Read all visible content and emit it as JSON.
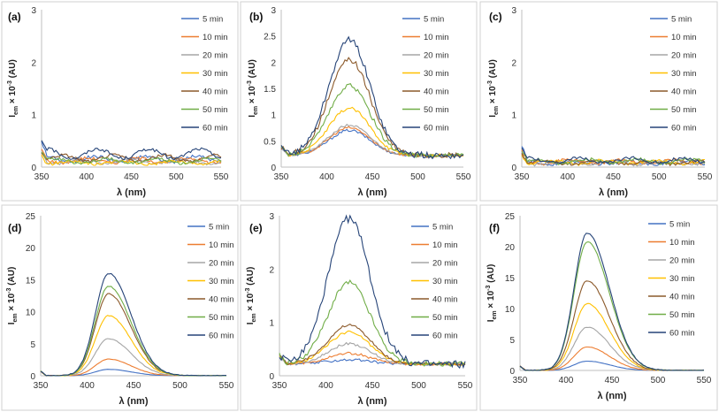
{
  "legend_labels": [
    "5 min",
    "10 min",
    "20 min",
    "30 min",
    "40 min",
    "50 min",
    "60 min"
  ],
  "series_colors": [
    "#4472C4",
    "#ED7D31",
    "#A5A5A5",
    "#FFC000",
    "#8C5A2B",
    "#70AD47",
    "#264478"
  ],
  "chart_data": [
    {
      "type": "line",
      "panel_label": "(a)",
      "xlabel": "λ (nm)",
      "ylabel": "Iem × 10-3 (AU)",
      "ylabel_parts": [
        "I",
        "em",
        "× 10",
        "-3",
        "(AU)"
      ],
      "xlim": [
        350,
        550
      ],
      "ylim": [
        0,
        3
      ],
      "xticks": [
        "350",
        "400",
        "450",
        "500",
        "550"
      ],
      "yticks": [
        "0",
        "1",
        "2",
        "3"
      ],
      "profile": "flat",
      "series": [
        {
          "name": "5 min",
          "peak": 0.18
        },
        {
          "name": "10 min",
          "peak": 0.15
        },
        {
          "name": "20 min",
          "peak": 0.12
        },
        {
          "name": "30 min",
          "peak": 0.1
        },
        {
          "name": "40 min",
          "peak": 0.2
        },
        {
          "name": "50 min",
          "peak": 0.14
        },
        {
          "name": "60 min",
          "peak": 0.3
        }
      ]
    },
    {
      "type": "line",
      "panel_label": "(b)",
      "xlabel": "λ (nm)",
      "ylabel": "Iem × 10-3 (AU)",
      "ylabel_parts": [
        "I",
        "em",
        "× 10",
        "-3",
        "(AU)"
      ],
      "xlim": [
        350,
        550
      ],
      "ylim": [
        0,
        3
      ],
      "xticks": [
        "350",
        "400",
        "450",
        "500",
        "550"
      ],
      "yticks": [
        "0",
        "0.5",
        "1",
        "1.5",
        "2",
        "2.5",
        "3"
      ],
      "profile": "peak",
      "series": [
        {
          "name": "5 min",
          "peak": 0.7
        },
        {
          "name": "10 min",
          "peak": 0.75
        },
        {
          "name": "20 min",
          "peak": 0.8
        },
        {
          "name": "30 min",
          "peak": 1.12
        },
        {
          "name": "40 min",
          "peak": 2.05
        },
        {
          "name": "50 min",
          "peak": 1.55
        },
        {
          "name": "60 min",
          "peak": 2.42
        }
      ]
    },
    {
      "type": "line",
      "panel_label": "(c)",
      "xlabel": "λ (nm)",
      "ylabel": "Iem × 10-3 (AU)",
      "ylabel_parts": [
        "I",
        "em",
        "× 10",
        "-3",
        "(AU)"
      ],
      "xlim": [
        350,
        550
      ],
      "ylim": [
        0,
        3
      ],
      "xticks": [
        "350",
        "400",
        "450",
        "500",
        "550"
      ],
      "yticks": [
        "0",
        "1",
        "2",
        "3"
      ],
      "profile": "flat",
      "series": [
        {
          "name": "5 min",
          "peak": 0.1
        },
        {
          "name": "10 min",
          "peak": 0.12
        },
        {
          "name": "20 min",
          "peak": 0.09
        },
        {
          "name": "30 min",
          "peak": 0.11
        },
        {
          "name": "40 min",
          "peak": 0.1
        },
        {
          "name": "50 min",
          "peak": 0.13
        },
        {
          "name": "60 min",
          "peak": 0.15
        }
      ]
    },
    {
      "type": "line",
      "panel_label": "(d)",
      "xlabel": "λ (nm)",
      "ylabel": "Iem × 10-3 (AU)",
      "ylabel_parts": [
        "I",
        "em",
        "× 10",
        "-3",
        "(AU)"
      ],
      "xlim": [
        350,
        550
      ],
      "ylim": [
        0,
        25
      ],
      "xticks": [
        "350",
        "400",
        "450",
        "500",
        "550"
      ],
      "yticks": [
        "0",
        "5",
        "10",
        "15",
        "20",
        "25"
      ],
      "profile": "smooth",
      "series": [
        {
          "name": "5 min",
          "peak": 1.0
        },
        {
          "name": "10 min",
          "peak": 2.6
        },
        {
          "name": "20 min",
          "peak": 5.8
        },
        {
          "name": "30 min",
          "peak": 9.4
        },
        {
          "name": "40 min",
          "peak": 12.8
        },
        {
          "name": "50 min",
          "peak": 14.0
        },
        {
          "name": "60 min",
          "peak": 16.0
        }
      ]
    },
    {
      "type": "line",
      "panel_label": "(e)",
      "xlabel": "λ (nm)",
      "ylabel": "Iem × 10-3 (AU)",
      "ylabel_parts": [
        "I",
        "em",
        "× 10",
        "-3",
        "(AU)"
      ],
      "xlim": [
        350,
        550
      ],
      "ylim": [
        0,
        3
      ],
      "xticks": [
        "350",
        "400",
        "450",
        "500",
        "550"
      ],
      "yticks": [
        "0",
        "1",
        "2",
        "3"
      ],
      "profile": "peak",
      "series": [
        {
          "name": "5 min",
          "peak": 0.3
        },
        {
          "name": "10 min",
          "peak": 0.42
        },
        {
          "name": "20 min",
          "peak": 0.6
        },
        {
          "name": "30 min",
          "peak": 0.82
        },
        {
          "name": "40 min",
          "peak": 0.95
        },
        {
          "name": "50 min",
          "peak": 1.75
        },
        {
          "name": "60 min",
          "peak": 2.95
        }
      ]
    },
    {
      "type": "line",
      "panel_label": "(f)",
      "xlabel": "λ (nm)",
      "ylabel": "Iem × 10-3 (AU)",
      "ylabel_parts": [
        "I",
        "em",
        "× 10",
        "-3",
        "(AU)"
      ],
      "xlim": [
        350,
        550
      ],
      "ylim": [
        0,
        25
      ],
      "xticks": [
        "350",
        "400",
        "450",
        "500",
        "550"
      ],
      "yticks": [
        "0",
        "5",
        "10",
        "15",
        "20",
        "25"
      ],
      "profile": "smooth",
      "series": [
        {
          "name": "5 min",
          "peak": 1.5
        },
        {
          "name": "10 min",
          "peak": 3.8
        },
        {
          "name": "20 min",
          "peak": 7.0
        },
        {
          "name": "30 min",
          "peak": 10.8
        },
        {
          "name": "40 min",
          "peak": 14.5
        },
        {
          "name": "50 min",
          "peak": 20.8
        },
        {
          "name": "60 min",
          "peak": 22.2
        }
      ]
    }
  ]
}
